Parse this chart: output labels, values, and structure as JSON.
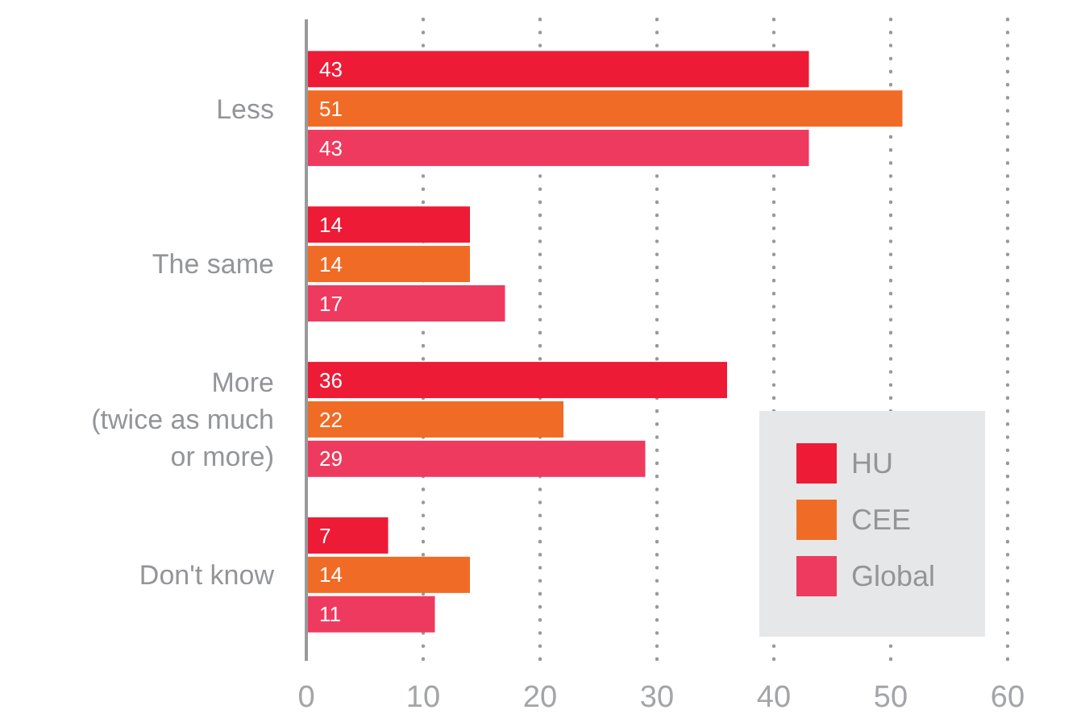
{
  "chart_data": {
    "type": "bar",
    "orientation": "horizontal",
    "categories": [
      "Less",
      "The same",
      "More\n(twice as much\nor more)",
      "Don't know"
    ],
    "series": [
      {
        "name": "HU",
        "color": "#ed1b36",
        "values": [
          43,
          14,
          36,
          7
        ]
      },
      {
        "name": "CEE",
        "color": "#f06c26",
        "values": [
          51,
          14,
          22,
          14
        ]
      },
      {
        "name": "Global",
        "color": "#ef3a5f",
        "values": [
          43,
          17,
          29,
          11
        ]
      }
    ],
    "xlim": [
      0,
      60
    ],
    "xticks": [
      0,
      10,
      20,
      30,
      40,
      50,
      60
    ],
    "grid": "x",
    "legend": "bottom right",
    "data_labels": true
  }
}
